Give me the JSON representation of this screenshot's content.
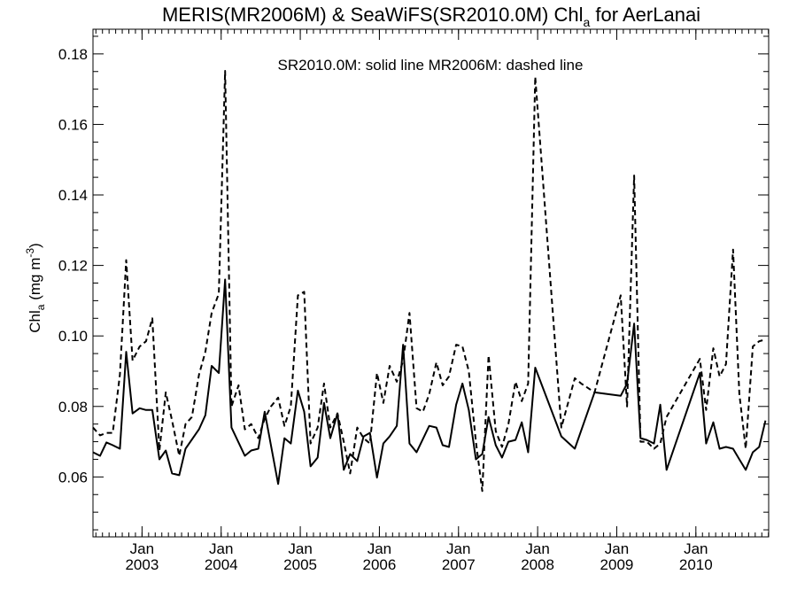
{
  "chart_data": {
    "type": "line",
    "title": "MERIS(MR2006M) & SeaWiFS(SR2010.0M)  Chl",
    "title_subscript": "a",
    "title_suffix": " for AerLanai",
    "ylabel_main": "Chl",
    "ylabel_sub": "a",
    "ylabel_unit": " (mg m",
    "ylabel_exp": "-3",
    "ylabel_close": ")",
    "annotation": "SR2010.0M: solid line   MR2006M: dashed line",
    "ylim": [
      0.043,
      0.187
    ],
    "xlim": [
      2002.38,
      2010.92
    ],
    "yticks": [
      {
        "value": 0.06,
        "label": "0.06"
      },
      {
        "value": 0.08,
        "label": "0.08"
      },
      {
        "value": 0.1,
        "label": "0.10"
      },
      {
        "value": 0.12,
        "label": "0.12"
      },
      {
        "value": 0.14,
        "label": "0.14"
      },
      {
        "value": 0.16,
        "label": "0.16"
      },
      {
        "value": 0.18,
        "label": "0.18"
      }
    ],
    "xticks": [
      {
        "value": 2003.0,
        "month": "Jan",
        "year": "2003"
      },
      {
        "value": 2004.0,
        "month": "Jan",
        "year": "2004"
      },
      {
        "value": 2005.0,
        "month": "Jan",
        "year": "2005"
      },
      {
        "value": 2006.0,
        "month": "Jan",
        "year": "2006"
      },
      {
        "value": 2007.0,
        "month": "Jan",
        "year": "2007"
      },
      {
        "value": 2008.0,
        "month": "Jan",
        "year": "2008"
      },
      {
        "value": 2009.0,
        "month": "Jan",
        "year": "2009"
      },
      {
        "value": 2010.0,
        "month": "Jan",
        "year": "2010"
      }
    ],
    "series": [
      {
        "name": "SR2010.0M",
        "style": "solid",
        "color": "#000000",
        "points": [
          [
            2002.38,
            0.067
          ],
          [
            2002.47,
            0.066
          ],
          [
            2002.55,
            0.0698
          ],
          [
            2002.63,
            0.069
          ],
          [
            2002.72,
            0.068
          ],
          [
            2002.8,
            0.0955
          ],
          [
            2002.88,
            0.078
          ],
          [
            2002.97,
            0.0795
          ],
          [
            2003.05,
            0.079
          ],
          [
            2003.13,
            0.079
          ],
          [
            2003.22,
            0.065
          ],
          [
            2003.3,
            0.0675
          ],
          [
            2003.38,
            0.061
          ],
          [
            2003.47,
            0.0605
          ],
          [
            2003.55,
            0.068
          ],
          [
            2003.72,
            0.0735
          ],
          [
            2003.8,
            0.0775
          ],
          [
            2003.88,
            0.0915
          ],
          [
            2003.97,
            0.0895
          ],
          [
            2004.05,
            0.116
          ],
          [
            2004.13,
            0.074
          ],
          [
            2004.3,
            0.066
          ],
          [
            2004.38,
            0.0675
          ],
          [
            2004.47,
            0.068
          ],
          [
            2004.55,
            0.0785
          ],
          [
            2004.72,
            0.058
          ],
          [
            2004.8,
            0.071
          ],
          [
            2004.88,
            0.0695
          ],
          [
            2004.97,
            0.0845
          ],
          [
            2005.05,
            0.0785
          ],
          [
            2005.13,
            0.063
          ],
          [
            2005.22,
            0.0655
          ],
          [
            2005.3,
            0.081
          ],
          [
            2005.38,
            0.071
          ],
          [
            2005.47,
            0.078
          ],
          [
            2005.55,
            0.062
          ],
          [
            2005.63,
            0.0665
          ],
          [
            2005.72,
            0.0645
          ],
          [
            2005.8,
            0.0715
          ],
          [
            2005.88,
            0.0725
          ],
          [
            2005.97,
            0.0598
          ],
          [
            2006.05,
            0.0695
          ],
          [
            2006.13,
            0.0715
          ],
          [
            2006.22,
            0.0745
          ],
          [
            2006.3,
            0.0975
          ],
          [
            2006.38,
            0.0695
          ],
          [
            2006.47,
            0.067
          ],
          [
            2006.63,
            0.0745
          ],
          [
            2006.72,
            0.074
          ],
          [
            2006.8,
            0.069
          ],
          [
            2006.88,
            0.0685
          ],
          [
            2006.97,
            0.0805
          ],
          [
            2007.05,
            0.0865
          ],
          [
            2007.13,
            0.079
          ],
          [
            2007.22,
            0.065
          ],
          [
            2007.3,
            0.0665
          ],
          [
            2007.38,
            0.077
          ],
          [
            2007.47,
            0.069
          ],
          [
            2007.55,
            0.0655
          ],
          [
            2007.63,
            0.07
          ],
          [
            2007.72,
            0.0705
          ],
          [
            2007.8,
            0.0755
          ],
          [
            2007.88,
            0.067
          ],
          [
            2007.97,
            0.091
          ],
          [
            2008.3,
            0.0715
          ],
          [
            2008.47,
            0.068
          ],
          [
            2008.72,
            0.084
          ],
          [
            2009.05,
            0.083
          ],
          [
            2009.13,
            0.0865
          ],
          [
            2009.22,
            0.1035
          ],
          [
            2009.3,
            0.071
          ],
          [
            2009.38,
            0.0705
          ],
          [
            2009.47,
            0.0695
          ],
          [
            2009.55,
            0.0805
          ],
          [
            2009.63,
            0.062
          ],
          [
            2010.05,
            0.0895
          ],
          [
            2010.13,
            0.0695
          ],
          [
            2010.22,
            0.0755
          ],
          [
            2010.3,
            0.068
          ],
          [
            2010.38,
            0.0685
          ],
          [
            2010.47,
            0.068
          ],
          [
            2010.55,
            0.065
          ],
          [
            2010.63,
            0.062
          ],
          [
            2010.72,
            0.067
          ],
          [
            2010.8,
            0.0685
          ],
          [
            2010.88,
            0.076
          ]
        ]
      },
      {
        "name": "MR2006M",
        "style": "dashed",
        "color": "#000000",
        "points": [
          [
            2002.38,
            0.074
          ],
          [
            2002.47,
            0.0718
          ],
          [
            2002.55,
            0.0725
          ],
          [
            2002.63,
            0.0725
          ],
          [
            2002.72,
            0.089
          ],
          [
            2002.8,
            0.1215
          ],
          [
            2002.88,
            0.093
          ],
          [
            2002.97,
            0.097
          ],
          [
            2003.05,
            0.0985
          ],
          [
            2003.13,
            0.105
          ],
          [
            2003.22,
            0.0675
          ],
          [
            2003.3,
            0.084
          ],
          [
            2003.38,
            0.076
          ],
          [
            2003.47,
            0.066
          ],
          [
            2003.55,
            0.075
          ],
          [
            2003.63,
            0.077
          ],
          [
            2003.72,
            0.089
          ],
          [
            2003.8,
            0.0955
          ],
          [
            2003.88,
            0.1065
          ],
          [
            2003.97,
            0.112
          ],
          [
            2004.05,
            0.1752
          ],
          [
            2004.13,
            0.08
          ],
          [
            2004.22,
            0.086
          ],
          [
            2004.3,
            0.0735
          ],
          [
            2004.38,
            0.075
          ],
          [
            2004.47,
            0.071
          ],
          [
            2004.55,
            0.0765
          ],
          [
            2004.63,
            0.08
          ],
          [
            2004.72,
            0.0825
          ],
          [
            2004.8,
            0.0745
          ],
          [
            2004.88,
            0.08
          ],
          [
            2004.97,
            0.1115
          ],
          [
            2005.05,
            0.1125
          ],
          [
            2005.13,
            0.0695
          ],
          [
            2005.22,
            0.074
          ],
          [
            2005.3,
            0.0865
          ],
          [
            2005.38,
            0.074
          ],
          [
            2005.47,
            0.078
          ],
          [
            2005.55,
            0.07
          ],
          [
            2005.63,
            0.061
          ],
          [
            2005.72,
            0.074
          ],
          [
            2005.8,
            0.071
          ],
          [
            2005.88,
            0.0695
          ],
          [
            2005.97,
            0.0895
          ],
          [
            2006.05,
            0.081
          ],
          [
            2006.13,
            0.0915
          ],
          [
            2006.22,
            0.087
          ],
          [
            2006.3,
            0.093
          ],
          [
            2006.38,
            0.1065
          ],
          [
            2006.47,
            0.0795
          ],
          [
            2006.55,
            0.0785
          ],
          [
            2006.63,
            0.0835
          ],
          [
            2006.72,
            0.0925
          ],
          [
            2006.8,
            0.086
          ],
          [
            2006.88,
            0.0885
          ],
          [
            2006.97,
            0.0975
          ],
          [
            2007.05,
            0.097
          ],
          [
            2007.13,
            0.09
          ],
          [
            2007.22,
            0.07
          ],
          [
            2007.3,
            0.056
          ],
          [
            2007.38,
            0.0945
          ],
          [
            2007.47,
            0.073
          ],
          [
            2007.55,
            0.0685
          ],
          [
            2007.63,
            0.075
          ],
          [
            2007.72,
            0.087
          ],
          [
            2007.8,
            0.0815
          ],
          [
            2007.88,
            0.0865
          ],
          [
            2007.97,
            0.1735
          ],
          [
            2008.3,
            0.074
          ],
          [
            2008.47,
            0.088
          ],
          [
            2008.55,
            0.0865
          ],
          [
            2008.72,
            0.084
          ],
          [
            2009.05,
            0.1115
          ],
          [
            2009.13,
            0.08
          ],
          [
            2009.22,
            0.1455
          ],
          [
            2009.3,
            0.07
          ],
          [
            2009.38,
            0.07
          ],
          [
            2009.47,
            0.068
          ],
          [
            2009.55,
            0.0695
          ],
          [
            2009.63,
            0.077
          ],
          [
            2010.05,
            0.0935
          ],
          [
            2010.13,
            0.079
          ],
          [
            2010.22,
            0.0965
          ],
          [
            2010.3,
            0.0885
          ],
          [
            2010.38,
            0.092
          ],
          [
            2010.47,
            0.1245
          ],
          [
            2010.55,
            0.0835
          ],
          [
            2010.63,
            0.068
          ],
          [
            2010.72,
            0.097
          ],
          [
            2010.8,
            0.0985
          ],
          [
            2010.88,
            0.099
          ]
        ]
      }
    ]
  }
}
